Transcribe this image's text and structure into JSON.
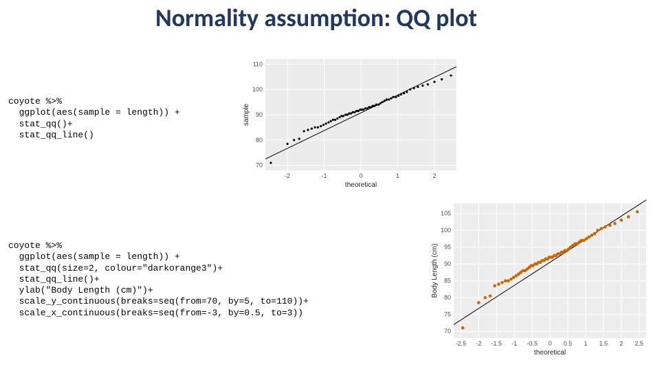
{
  "title": "Normality assumption: QQ plot",
  "code1": "coyote %>%\n  ggplot(aes(sample = length)) +\n  stat_qq()+\n  stat_qq_line()",
  "code2": "coyote %>%\n  ggplot(aes(sample = length)) +\n  stat_qq(size=2, colour=\"darkorange3\")+\n  stat_qq_line()+\n  ylab(\"Body Length (cm)\")+\n  scale_y_continuous(breaks=seq(from=70, by=5, to=110))+\n  scale_x_continuous(breaks=seq(from=-3, by=0.5, to=3))",
  "chart1": {
    "type": "qqplot",
    "panel_bg": "#ececec",
    "grid_color": "#ffffff",
    "point_color": "#000000",
    "point_size": 1.6,
    "line_color": "#000000",
    "xlabel": "theoretical",
    "ylabel": "sample",
    "label_fontsize": 10,
    "tick_fontsize": 9,
    "xticks": [
      -2,
      -1,
      0,
      1,
      2
    ],
    "yticks": [
      70,
      80,
      90,
      100,
      110
    ],
    "xlim": [
      -2.6,
      2.6
    ],
    "ylim": [
      68,
      112
    ],
    "line": {
      "x1": -2.6,
      "y1": 72.5,
      "x2": 2.6,
      "y2": 109
    },
    "points": [
      {
        "x": -2.45,
        "y": 71
      },
      {
        "x": -2.0,
        "y": 78.5
      },
      {
        "x": -1.82,
        "y": 80
      },
      {
        "x": -1.68,
        "y": 80.5
      },
      {
        "x": -1.55,
        "y": 83.5
      },
      {
        "x": -1.44,
        "y": 84
      },
      {
        "x": -1.34,
        "y": 84.5
      },
      {
        "x": -1.25,
        "y": 85
      },
      {
        "x": -1.17,
        "y": 85
      },
      {
        "x": -1.09,
        "y": 85.5
      },
      {
        "x": -1.02,
        "y": 86
      },
      {
        "x": -0.95,
        "y": 86.5
      },
      {
        "x": -0.88,
        "y": 87
      },
      {
        "x": -0.82,
        "y": 87.5
      },
      {
        "x": -0.76,
        "y": 88
      },
      {
        "x": -0.7,
        "y": 88
      },
      {
        "x": -0.64,
        "y": 88.5
      },
      {
        "x": -0.58,
        "y": 89
      },
      {
        "x": -0.53,
        "y": 89.5
      },
      {
        "x": -0.48,
        "y": 89.5
      },
      {
        "x": -0.42,
        "y": 90
      },
      {
        "x": -0.37,
        "y": 90
      },
      {
        "x": -0.32,
        "y": 90.5
      },
      {
        "x": -0.27,
        "y": 90.5
      },
      {
        "x": -0.22,
        "y": 91
      },
      {
        "x": -0.17,
        "y": 91
      },
      {
        "x": -0.12,
        "y": 91.5
      },
      {
        "x": -0.07,
        "y": 91.5
      },
      {
        "x": -0.02,
        "y": 92
      },
      {
        "x": 0.02,
        "y": 92
      },
      {
        "x": 0.07,
        "y": 92
      },
      {
        "x": 0.12,
        "y": 92.5
      },
      {
        "x": 0.17,
        "y": 92.5
      },
      {
        "x": 0.22,
        "y": 93
      },
      {
        "x": 0.27,
        "y": 93
      },
      {
        "x": 0.32,
        "y": 93.5
      },
      {
        "x": 0.37,
        "y": 93.5
      },
      {
        "x": 0.42,
        "y": 94
      },
      {
        "x": 0.48,
        "y": 94
      },
      {
        "x": 0.53,
        "y": 94.5
      },
      {
        "x": 0.58,
        "y": 95
      },
      {
        "x": 0.64,
        "y": 95.5
      },
      {
        "x": 0.7,
        "y": 96
      },
      {
        "x": 0.76,
        "y": 96
      },
      {
        "x": 0.82,
        "y": 96.5
      },
      {
        "x": 0.88,
        "y": 97
      },
      {
        "x": 0.95,
        "y": 97
      },
      {
        "x": 1.02,
        "y": 97.5
      },
      {
        "x": 1.09,
        "y": 98
      },
      {
        "x": 1.17,
        "y": 98.5
      },
      {
        "x": 1.25,
        "y": 99
      },
      {
        "x": 1.34,
        "y": 100
      },
      {
        "x": 1.44,
        "y": 100.5
      },
      {
        "x": 1.55,
        "y": 101
      },
      {
        "x": 1.68,
        "y": 101.5
      },
      {
        "x": 1.82,
        "y": 102
      },
      {
        "x": 2.0,
        "y": 103
      },
      {
        "x": 2.2,
        "y": 104
      },
      {
        "x": 2.45,
        "y": 105.5
      }
    ]
  },
  "chart2": {
    "type": "qqplot",
    "panel_bg": "#ededed",
    "grid_color": "#ffffff",
    "point_color": "#cd6600",
    "point_size": 2.3,
    "line_color": "#000000",
    "xlabel": "theoretical",
    "ylabel": "Body Length (cm)",
    "label_fontsize": 10,
    "tick_fontsize": 9,
    "xticks": [
      -2.5,
      -2.0,
      -1.5,
      -1.0,
      -0.5,
      0.0,
      0.5,
      1.0,
      1.5,
      2.0,
      2.5
    ],
    "yticks": [
      70,
      75,
      80,
      85,
      90,
      95,
      100,
      105
    ],
    "xlim": [
      -2.7,
      2.7
    ],
    "ylim": [
      68,
      108
    ],
    "line": {
      "x1": -2.7,
      "y1": 72,
      "x2": 2.7,
      "y2": 109
    },
    "points": [
      {
        "x": -2.45,
        "y": 71
      },
      {
        "x": -2.0,
        "y": 78.5
      },
      {
        "x": -1.82,
        "y": 80
      },
      {
        "x": -1.68,
        "y": 80.5
      },
      {
        "x": -1.55,
        "y": 83.5
      },
      {
        "x": -1.44,
        "y": 84
      },
      {
        "x": -1.34,
        "y": 84.5
      },
      {
        "x": -1.25,
        "y": 85
      },
      {
        "x": -1.17,
        "y": 85
      },
      {
        "x": -1.09,
        "y": 85.5
      },
      {
        "x": -1.02,
        "y": 86
      },
      {
        "x": -0.95,
        "y": 86.5
      },
      {
        "x": -0.88,
        "y": 87
      },
      {
        "x": -0.82,
        "y": 87.5
      },
      {
        "x": -0.76,
        "y": 88
      },
      {
        "x": -0.7,
        "y": 88
      },
      {
        "x": -0.64,
        "y": 88.5
      },
      {
        "x": -0.58,
        "y": 89
      },
      {
        "x": -0.53,
        "y": 89.5
      },
      {
        "x": -0.48,
        "y": 89.5
      },
      {
        "x": -0.42,
        "y": 90
      },
      {
        "x": -0.37,
        "y": 90
      },
      {
        "x": -0.32,
        "y": 90.5
      },
      {
        "x": -0.27,
        "y": 90.5
      },
      {
        "x": -0.22,
        "y": 91
      },
      {
        "x": -0.17,
        "y": 91
      },
      {
        "x": -0.12,
        "y": 91.5
      },
      {
        "x": -0.07,
        "y": 91.5
      },
      {
        "x": -0.02,
        "y": 92
      },
      {
        "x": 0.02,
        "y": 92
      },
      {
        "x": 0.07,
        "y": 92
      },
      {
        "x": 0.12,
        "y": 92.5
      },
      {
        "x": 0.17,
        "y": 92.5
      },
      {
        "x": 0.22,
        "y": 93
      },
      {
        "x": 0.27,
        "y": 93
      },
      {
        "x": 0.32,
        "y": 93.5
      },
      {
        "x": 0.37,
        "y": 93.5
      },
      {
        "x": 0.42,
        "y": 94
      },
      {
        "x": 0.48,
        "y": 94
      },
      {
        "x": 0.53,
        "y": 94.5
      },
      {
        "x": 0.58,
        "y": 95
      },
      {
        "x": 0.64,
        "y": 95.5
      },
      {
        "x": 0.7,
        "y": 96
      },
      {
        "x": 0.76,
        "y": 96
      },
      {
        "x": 0.82,
        "y": 96.5
      },
      {
        "x": 0.88,
        "y": 97
      },
      {
        "x": 0.95,
        "y": 97
      },
      {
        "x": 1.02,
        "y": 97.5
      },
      {
        "x": 1.09,
        "y": 98
      },
      {
        "x": 1.17,
        "y": 98.5
      },
      {
        "x": 1.25,
        "y": 99
      },
      {
        "x": 1.34,
        "y": 100
      },
      {
        "x": 1.44,
        "y": 100.5
      },
      {
        "x": 1.55,
        "y": 101
      },
      {
        "x": 1.68,
        "y": 101.5
      },
      {
        "x": 1.82,
        "y": 102
      },
      {
        "x": 2.0,
        "y": 103
      },
      {
        "x": 2.2,
        "y": 104
      },
      {
        "x": 2.45,
        "y": 105.5
      }
    ]
  }
}
